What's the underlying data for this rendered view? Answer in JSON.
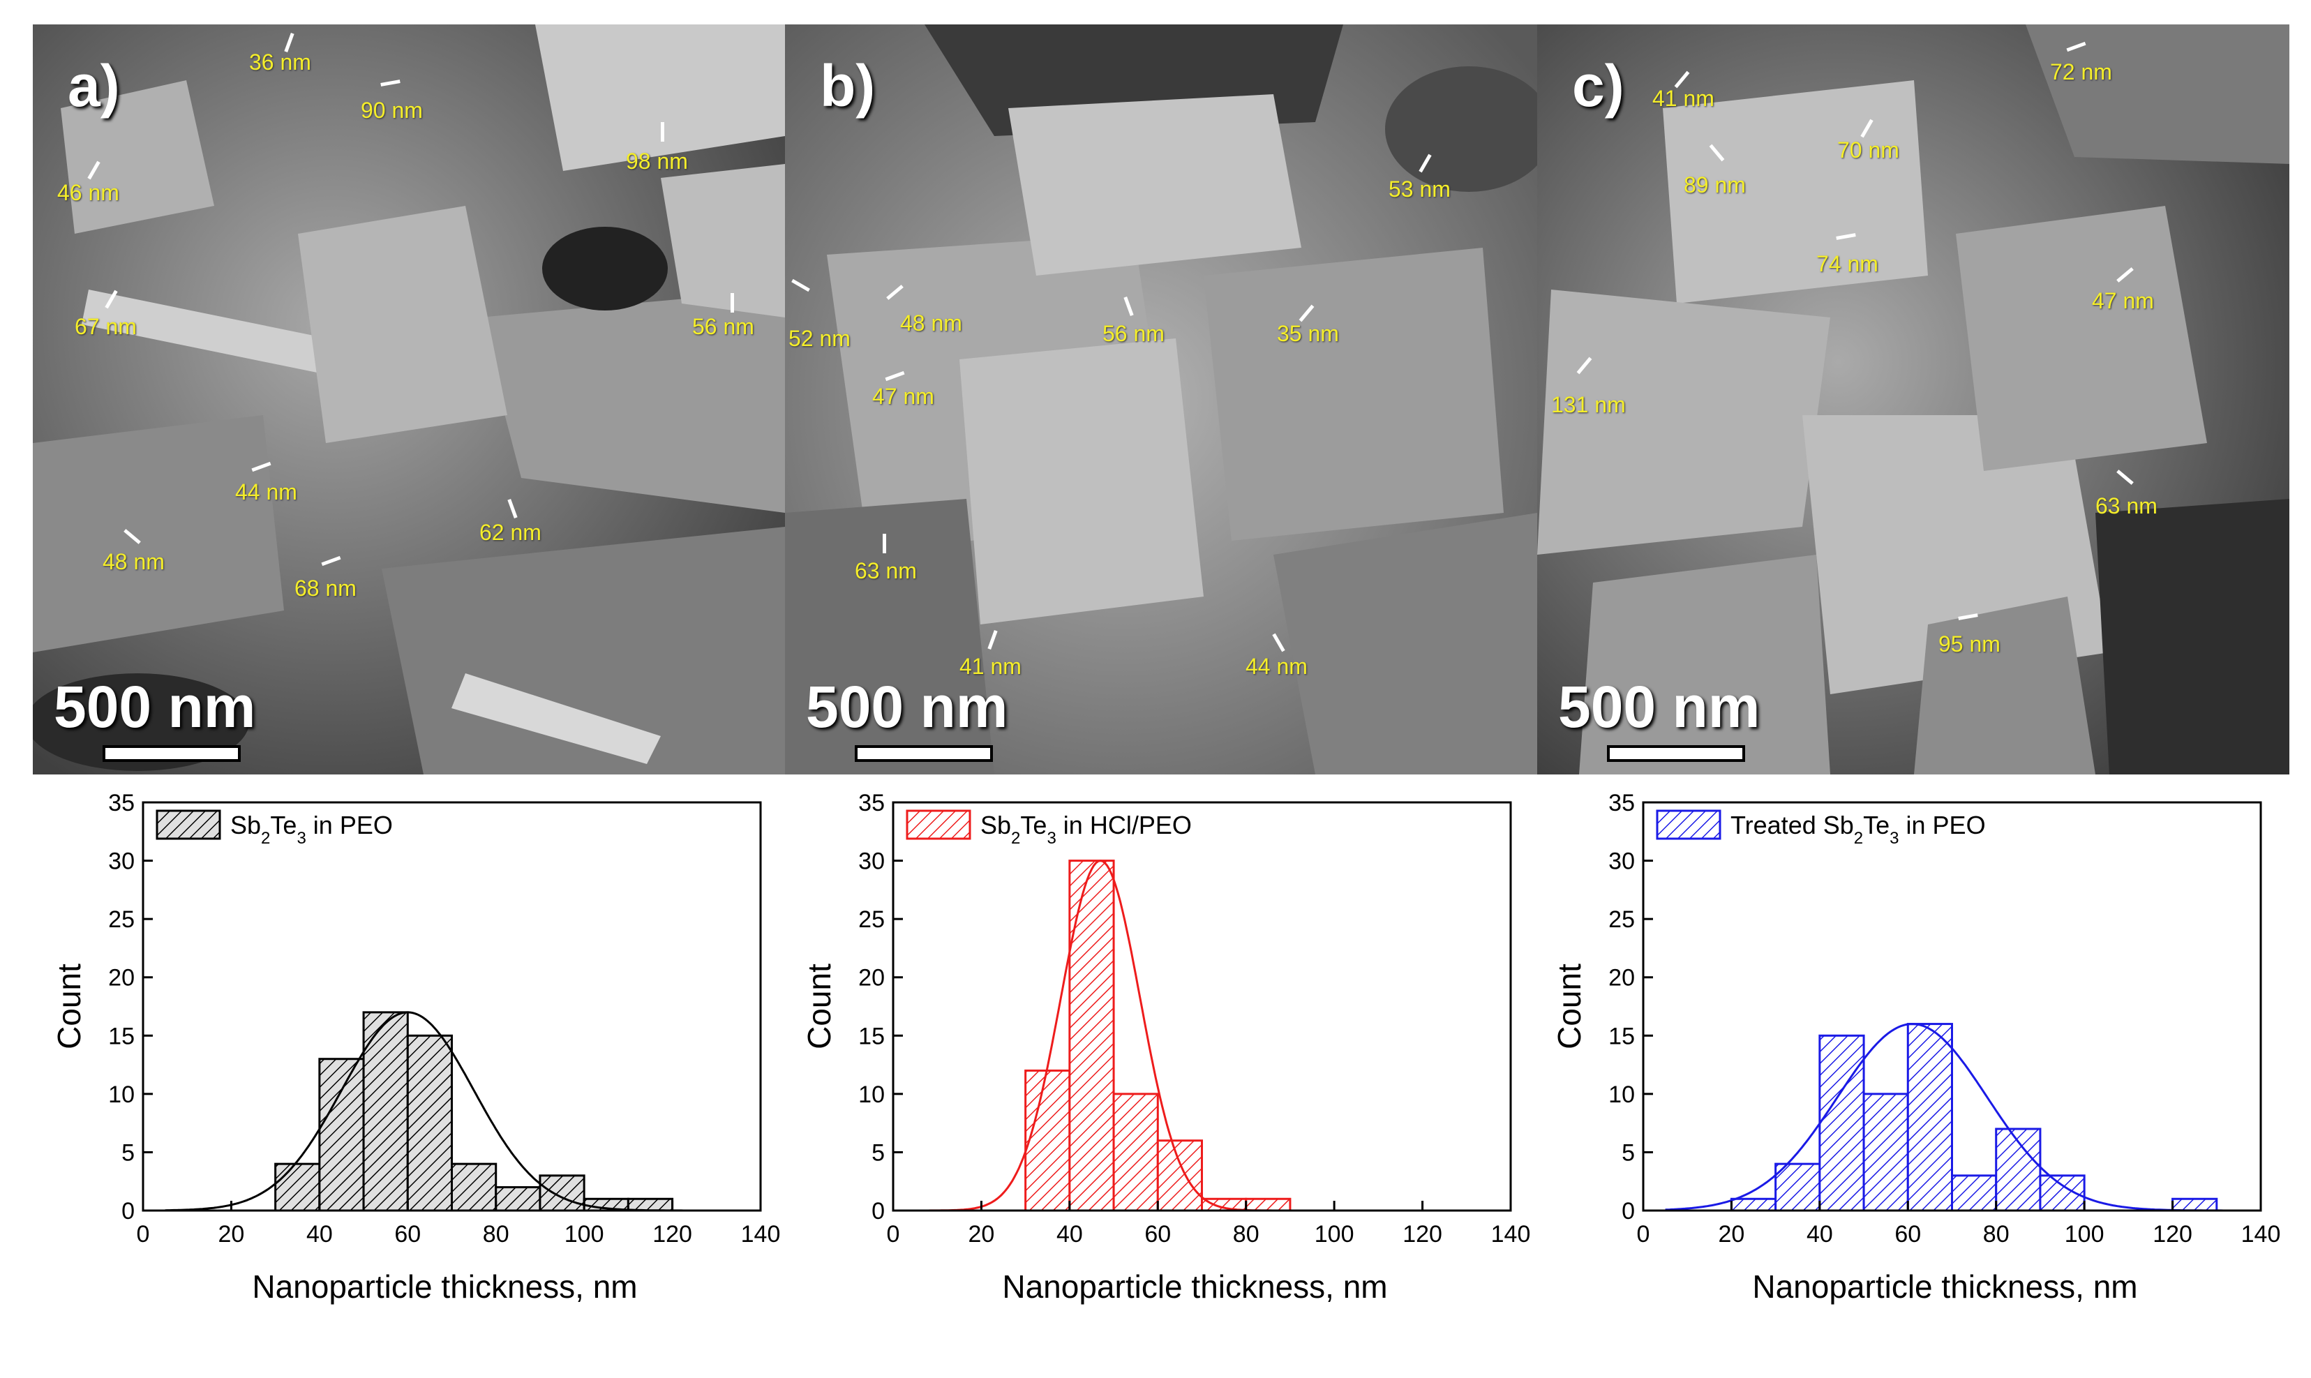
{
  "panels": [
    {
      "letter": "a)",
      "scalebar": "500 nm",
      "annotations": [
        "36 nm",
        "90 nm",
        "98 nm",
        "46 nm",
        "67 nm",
        "56 nm",
        "44 nm",
        "62 nm",
        "48 nm",
        "68 nm"
      ]
    },
    {
      "letter": "b)",
      "scalebar": "500 nm",
      "annotations": [
        "53 nm",
        "52 nm",
        "48 nm",
        "56 nm",
        "35 nm",
        "47 nm",
        "63 nm",
        "41 nm",
        "44 nm"
      ]
    },
    {
      "letter": "c)",
      "scalebar": "500 nm",
      "annotations": [
        "72 nm",
        "41 nm",
        "70 nm",
        "89 nm",
        "74 nm",
        "47 nm",
        "131 nm",
        "63 nm",
        "95 nm"
      ]
    }
  ],
  "chart_data": [
    {
      "type": "bar",
      "legend": {
        "prefix": "Sb",
        "sub1": "2",
        "mid": "Te",
        "sub2": "3",
        "suffix": " in PEO"
      },
      "color": "#000000",
      "fill": "#e0e0e0",
      "bin_edges": [
        30,
        40,
        50,
        60,
        70,
        80,
        90,
        100,
        110,
        120
      ],
      "counts": [
        4,
        13,
        17,
        15,
        4,
        2,
        3,
        1,
        1
      ],
      "fit": {
        "mean": 60,
        "sigma": 15,
        "peak": 17
      },
      "xlabel": "Nanoparticle thickness, nm",
      "ylabel": "Count",
      "xlim": [
        0,
        140
      ],
      "ylim": [
        0,
        35
      ],
      "xticks": [
        0,
        20,
        40,
        60,
        80,
        100,
        120,
        140
      ],
      "yticks": [
        0,
        5,
        10,
        15,
        20,
        25,
        30,
        35
      ]
    },
    {
      "type": "bar",
      "legend": {
        "prefix": "Sb",
        "sub1": "2",
        "mid": "Te",
        "sub2": "3",
        "suffix": " in HCl/PEO"
      },
      "color": "#ee1c1c",
      "fill": "#ffffff",
      "bin_edges": [
        30,
        40,
        50,
        60,
        70,
        80,
        90
      ],
      "counts": [
        12,
        30,
        10,
        6,
        1,
        1
      ],
      "fit": {
        "mean": 47,
        "sigma": 9,
        "peak": 30
      },
      "xlabel": "Nanoparticle thickness, nm",
      "ylabel": "Count",
      "xlim": [
        0,
        140
      ],
      "ylim": [
        0,
        35
      ],
      "xticks": [
        0,
        20,
        40,
        60,
        80,
        100,
        120,
        140
      ],
      "yticks": [
        0,
        5,
        10,
        15,
        20,
        25,
        30,
        35
      ]
    },
    {
      "type": "bar",
      "legend": {
        "prefix": "Treated Sb",
        "sub1": "2",
        "mid": "Te",
        "sub2": "3",
        "suffix": " in PEO"
      },
      "color": "#1a1ae6",
      "fill": "#ffffff",
      "bin_edges": [
        20,
        30,
        40,
        50,
        60,
        70,
        80,
        90,
        100,
        110,
        120,
        130
      ],
      "counts": [
        1,
        4,
        15,
        10,
        16,
        3,
        7,
        3,
        0,
        0,
        1
      ],
      "fit": {
        "mean": 61,
        "sigma": 17,
        "peak": 16
      },
      "xlabel": "Nanoparticle thickness, nm",
      "ylabel": "Count",
      "xlim": [
        0,
        140
      ],
      "ylim": [
        0,
        35
      ],
      "xticks": [
        0,
        20,
        40,
        60,
        80,
        100,
        120,
        140
      ],
      "yticks": [
        0,
        5,
        10,
        15,
        20,
        25,
        30,
        35
      ]
    }
  ]
}
